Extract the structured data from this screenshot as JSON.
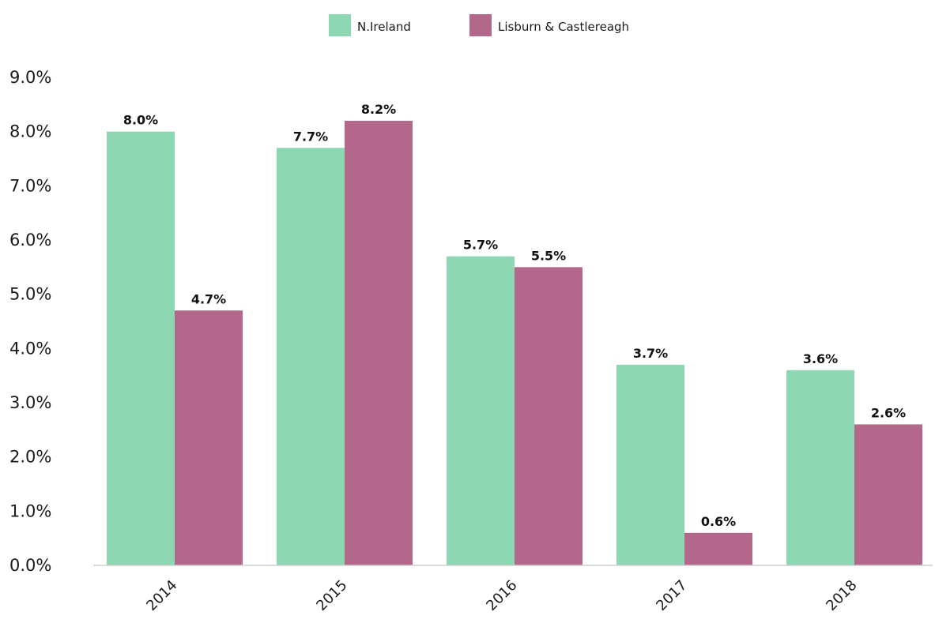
{
  "chart_data": {
    "type": "bar",
    "categories": [
      "2014",
      "2015",
      "2016",
      "2017",
      "2018"
    ],
    "series": [
      {
        "name": "N.Ireland",
        "color": "#8dd7b2",
        "values": [
          8.0,
          7.7,
          5.7,
          3.7,
          3.6
        ],
        "labels": [
          "8.0%",
          "7.7%",
          "5.7%",
          "3.7%",
          "3.6%"
        ]
      },
      {
        "name": "Lisburn & Castlereagh",
        "color": "#b3678a",
        "values": [
          4.7,
          8.2,
          5.5,
          0.6,
          2.6
        ],
        "labels": [
          "4.7%",
          "8.2%",
          "5.5%",
          "0.6%",
          "2.6%"
        ]
      }
    ],
    "y_ticks": [
      "0.0%",
      "1.0%",
      "2.0%",
      "3.0%",
      "4.0%",
      "5.0%",
      "6.0%",
      "7.0%",
      "8.0%",
      "9.0%"
    ],
    "ylim": [
      0,
      9
    ],
    "title": "",
    "xlabel": "",
    "ylabel": "",
    "grid": false,
    "legend_position": "top-center"
  }
}
